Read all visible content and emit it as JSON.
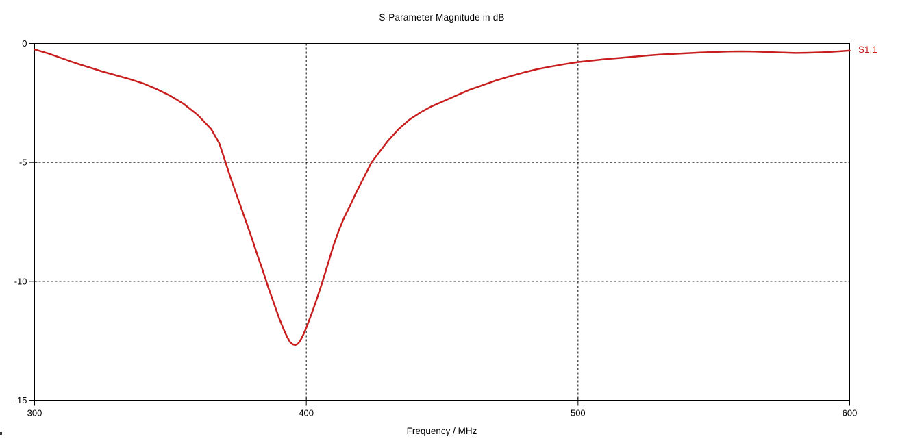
{
  "window": {
    "background": "#FFFFFF",
    "axis_color": "#000000",
    "grid_color": "#000000",
    "text_color": "#000000"
  },
  "chart_data": {
    "type": "line",
    "title": "S-Parameter Magnitude in dB",
    "xlabel": "Frequency / MHz",
    "ylabel": "",
    "xlim": [
      300,
      600
    ],
    "ylim": [
      -15,
      0
    ],
    "x_ticks": [
      "300",
      "400",
      "500",
      "600"
    ],
    "x_tick_values": [
      300,
      400,
      500,
      600
    ],
    "y_ticks": [
      "0",
      "-5",
      "-10",
      "-15"
    ],
    "y_tick_values": [
      0,
      -5,
      -10,
      -15
    ],
    "x_gridlines": [
      400,
      500
    ],
    "y_gridlines": [
      -5,
      -10
    ],
    "grid_style": "dashed",
    "legend": {
      "position": "right-of-plot",
      "entries": [
        {
          "label": "S1,1",
          "color": "#C81E1E"
        }
      ]
    },
    "series": [
      {
        "name": "S1,1",
        "color": "#C81E1E",
        "points": [
          [
            300,
            -0.25
          ],
          [
            305,
            -0.42
          ],
          [
            310,
            -0.62
          ],
          [
            315,
            -0.82
          ],
          [
            320,
            -1.0
          ],
          [
            325,
            -1.18
          ],
          [
            330,
            -1.34
          ],
          [
            335,
            -1.5
          ],
          [
            340,
            -1.68
          ],
          [
            345,
            -1.92
          ],
          [
            350,
            -2.2
          ],
          [
            355,
            -2.55
          ],
          [
            360,
            -3.0
          ],
          [
            365,
            -3.6
          ],
          [
            368,
            -4.2
          ],
          [
            370,
            -4.9
          ],
          [
            372,
            -5.6
          ],
          [
            374,
            -6.25
          ],
          [
            376,
            -6.9
          ],
          [
            378,
            -7.55
          ],
          [
            380,
            -8.2
          ],
          [
            382,
            -8.9
          ],
          [
            384,
            -9.55
          ],
          [
            386,
            -10.25
          ],
          [
            388,
            -10.9
          ],
          [
            390,
            -11.55
          ],
          [
            392,
            -12.1
          ],
          [
            393,
            -12.35
          ],
          [
            394,
            -12.55
          ],
          [
            395,
            -12.65
          ],
          [
            396,
            -12.68
          ],
          [
            397,
            -12.62
          ],
          [
            398,
            -12.45
          ],
          [
            399,
            -12.22
          ],
          [
            400,
            -11.95
          ],
          [
            402,
            -11.35
          ],
          [
            404,
            -10.7
          ],
          [
            406,
            -10.0
          ],
          [
            408,
            -9.25
          ],
          [
            410,
            -8.5
          ],
          [
            412,
            -7.85
          ],
          [
            414,
            -7.3
          ],
          [
            416,
            -6.85
          ],
          [
            418,
            -6.35
          ],
          [
            420,
            -5.9
          ],
          [
            422,
            -5.45
          ],
          [
            424,
            -5.0
          ],
          [
            427,
            -4.55
          ],
          [
            430,
            -4.1
          ],
          [
            434,
            -3.6
          ],
          [
            438,
            -3.2
          ],
          [
            442,
            -2.9
          ],
          [
            446,
            -2.65
          ],
          [
            450,
            -2.45
          ],
          [
            455,
            -2.2
          ],
          [
            460,
            -1.95
          ],
          [
            465,
            -1.75
          ],
          [
            470,
            -1.55
          ],
          [
            475,
            -1.38
          ],
          [
            480,
            -1.22
          ],
          [
            485,
            -1.08
          ],
          [
            490,
            -0.97
          ],
          [
            495,
            -0.87
          ],
          [
            500,
            -0.78
          ],
          [
            505,
            -0.72
          ],
          [
            510,
            -0.66
          ],
          [
            515,
            -0.61
          ],
          [
            520,
            -0.56
          ],
          [
            525,
            -0.51
          ],
          [
            530,
            -0.47
          ],
          [
            535,
            -0.44
          ],
          [
            540,
            -0.41
          ],
          [
            545,
            -0.38
          ],
          [
            550,
            -0.36
          ],
          [
            555,
            -0.34
          ],
          [
            560,
            -0.33
          ],
          [
            565,
            -0.34
          ],
          [
            570,
            -0.36
          ],
          [
            575,
            -0.38
          ],
          [
            580,
            -0.4
          ],
          [
            585,
            -0.39
          ],
          [
            590,
            -0.37
          ],
          [
            595,
            -0.34
          ],
          [
            600,
            -0.3
          ]
        ]
      }
    ]
  }
}
